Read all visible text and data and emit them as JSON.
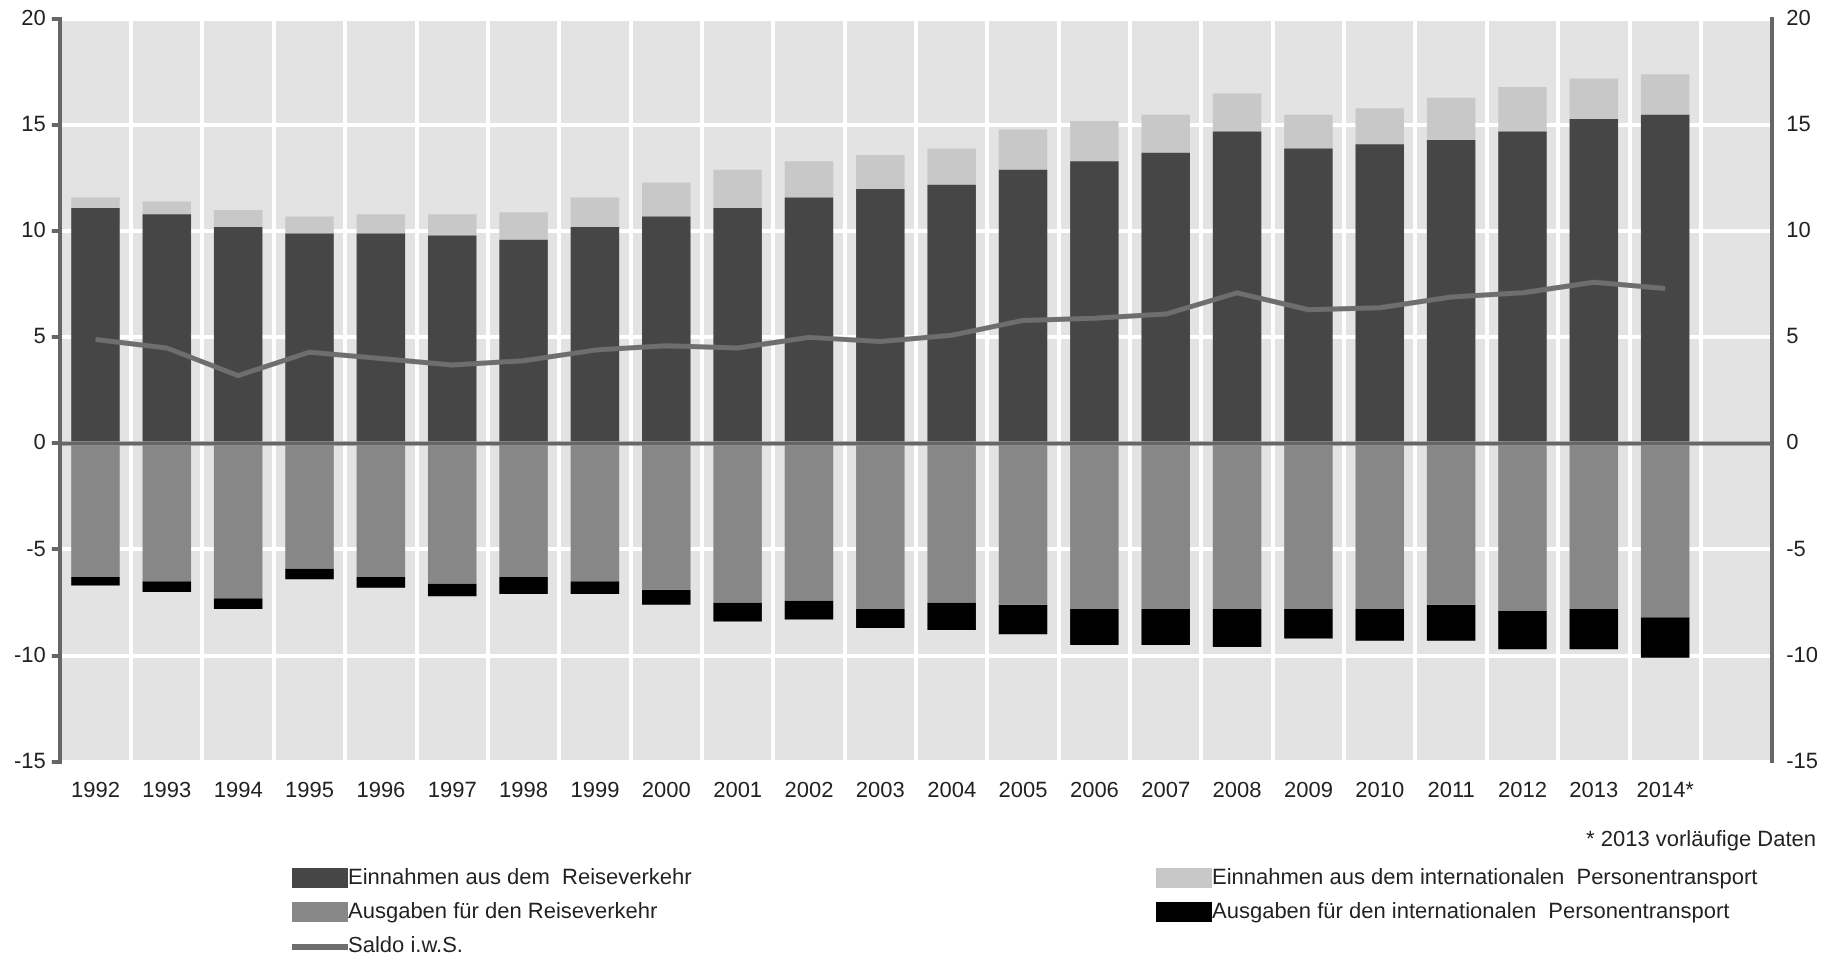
{
  "chart_data": {
    "type": "bar",
    "stacked": true,
    "categories": [
      "1992",
      "1993",
      "1994",
      "1995",
      "1996",
      "1997",
      "1998",
      "1999",
      "2000",
      "2001",
      "2002",
      "2003",
      "2004",
      "2005",
      "2006",
      "2007",
      "2008",
      "2009",
      "2010",
      "2011",
      "2012",
      "2013",
      "2014*",
      null
    ],
    "series": [
      {
        "name": "Einnahmen aus dem  Reiseverkehr",
        "color": "#464646",
        "values": [
          11.1,
          10.8,
          10.2,
          9.9,
          9.9,
          9.8,
          9.6,
          10.2,
          10.7,
          11.1,
          11.6,
          12.0,
          12.2,
          12.9,
          13.3,
          13.7,
          14.7,
          13.9,
          14.1,
          14.3,
          14.7,
          15.3,
          15.5,
          null
        ]
      },
      {
        "name": "Einnahmen aus dem internationalen  Personentransport",
        "color": "#c8c8c8",
        "values": [
          0.5,
          0.6,
          0.8,
          0.8,
          0.9,
          1.0,
          1.3,
          1.4,
          1.6,
          1.8,
          1.7,
          1.6,
          1.7,
          1.9,
          1.9,
          1.8,
          1.8,
          1.6,
          1.7,
          2.0,
          2.1,
          1.9,
          1.9,
          null
        ]
      },
      {
        "name": "Ausgaben für den Reiseverkehr",
        "color": "#878787",
        "values": [
          -6.3,
          -6.5,
          -7.3,
          -5.9,
          -6.3,
          -6.6,
          -6.3,
          -6.5,
          -6.9,
          -7.5,
          -7.4,
          -7.8,
          -7.5,
          -7.6,
          -7.8,
          -7.8,
          -7.8,
          -7.8,
          -7.8,
          -7.6,
          -7.9,
          -7.8,
          -8.2,
          null
        ]
      },
      {
        "name": "Ausgaben für den internationalen  Personentransport",
        "color": "#000000",
        "values": [
          -0.4,
          -0.5,
          -0.5,
          -0.5,
          -0.5,
          -0.6,
          -0.8,
          -0.6,
          -0.7,
          -0.9,
          -0.9,
          -0.9,
          -1.3,
          -1.4,
          -1.7,
          -1.7,
          -1.8,
          -1.4,
          -1.5,
          -1.7,
          -1.8,
          -1.9,
          -1.9,
          null
        ]
      },
      {
        "name": "Saldo i.w.S.",
        "type": "line",
        "color": "#6e6e6e",
        "values": [
          4.9,
          4.5,
          3.2,
          4.3,
          4.0,
          3.7,
          3.9,
          4.4,
          4.6,
          4.5,
          5.0,
          4.8,
          5.1,
          5.8,
          5.9,
          6.1,
          7.1,
          6.3,
          6.4,
          6.9,
          7.1,
          7.6,
          7.3,
          null
        ]
      }
    ],
    "ylim": [
      -15,
      20
    ],
    "yticks": [
      -15,
      -10,
      -5,
      0,
      5,
      10,
      15,
      20
    ],
    "y2lim": [
      -15,
      20
    ],
    "y2ticks": [
      -15,
      -10,
      -5,
      0,
      5,
      10,
      15,
      20
    ],
    "grid": true,
    "legend": "bottom",
    "marker": "none",
    "annotations": [
      "* 2013 vorläufige Daten"
    ]
  }
}
